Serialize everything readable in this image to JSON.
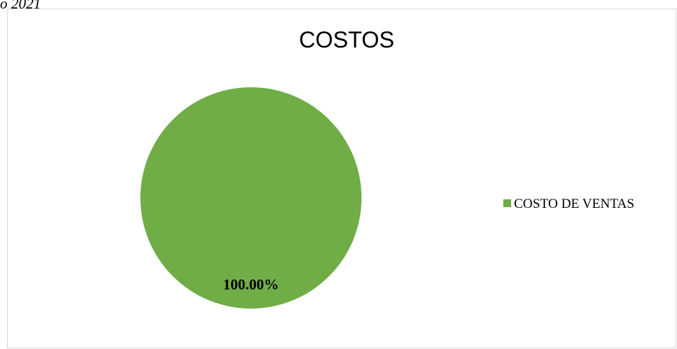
{
  "caption_fragment": "o 2021",
  "chart_data": {
    "type": "pie",
    "title": "COSTOS",
    "slices": [
      {
        "label": "COSTO DE VENTAS",
        "value": 100.0,
        "data_label": "100.00%",
        "color": "#70ad47"
      }
    ],
    "legend_position": "right"
  },
  "colors": {
    "slice": "#70ad47",
    "frame_border": "#d9d9d9",
    "text": "#000000"
  }
}
